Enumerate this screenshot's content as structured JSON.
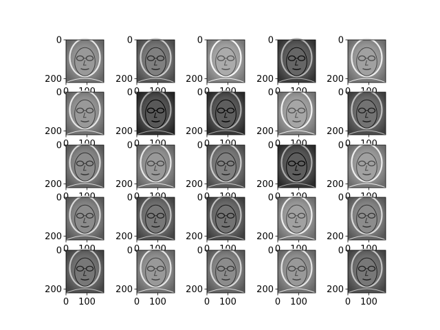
{
  "chart_data": {
    "type": "image_grid",
    "rows": 5,
    "cols": 5,
    "colormap": "gray",
    "panels_count": 25,
    "y_ticks": [
      {
        "value": 0,
        "label": "0"
      },
      {
        "value": 200,
        "label": "200"
      }
    ],
    "x_ticks": [
      {
        "value": 0,
        "label": "0"
      },
      {
        "value": 100,
        "label": "100"
      }
    ],
    "image_extent": {
      "x": [
        0,
        180
      ],
      "y": [
        0,
        220
      ]
    },
    "panel_tones": [
      0.55,
      0.45,
      0.62,
      0.35,
      0.58,
      0.55,
      0.3,
      0.32,
      0.6,
      0.4,
      0.5,
      0.55,
      0.45,
      0.32,
      0.58,
      0.5,
      0.42,
      0.4,
      0.58,
      0.5,
      0.42,
      0.55,
      0.5,
      0.55,
      0.42
    ],
    "colors": {
      "face_light": "#cfcfcf",
      "face_dark": "#2e2e2e",
      "axis": "#000000"
    }
  }
}
